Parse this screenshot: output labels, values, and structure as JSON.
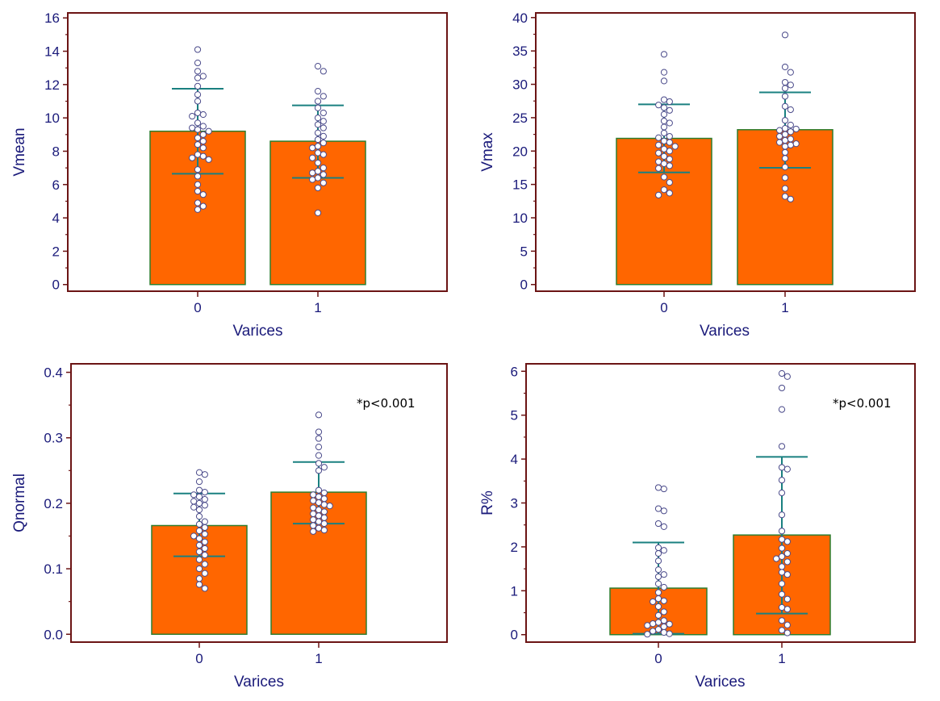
{
  "colors": {
    "frame": "#6b1414",
    "text": "#1a1a7a",
    "annotation": "#000000",
    "bar_fill": "#ff6600",
    "bar_edge": "#2e7d2e",
    "errorbar": "#1a8080",
    "point_edge": "#4a4a8a",
    "point_fill": "#ffffff"
  },
  "chart_data": [
    {
      "type": "bar",
      "ylabel": "Vmean",
      "xlabel": "Varices",
      "categories": [
        "0",
        "1"
      ],
      "values": [
        9.2,
        8.6
      ],
      "error_upper": [
        11.75,
        10.75
      ],
      "error_lower": [
        6.65,
        6.4
      ],
      "ylim": [
        -0.4,
        16.3
      ],
      "yticks": [
        0,
        2,
        4,
        6,
        8,
        10,
        12,
        14,
        16
      ],
      "ytick_labels": [
        "0",
        "2",
        "4",
        "6",
        "8",
        "10",
        "12",
        "14",
        "16"
      ],
      "annotation": "",
      "points": [
        [
          14.1,
          13.3,
          12.8,
          12.5,
          12.4,
          11.9,
          11.4,
          11.0,
          10.3,
          10.2,
          10.1,
          9.7,
          9.5,
          9.4,
          9.3,
          9.2,
          9.0,
          8.8,
          8.6,
          8.4,
          8.2,
          7.8,
          7.7,
          7.6,
          7.5,
          6.9,
          6.5,
          6.0,
          5.6,
          5.4,
          4.9,
          4.7,
          4.5
        ],
        [
          13.1,
          12.8,
          11.6,
          11.3,
          11.0,
          10.6,
          10.3,
          10.0,
          9.8,
          9.6,
          9.4,
          9.1,
          8.9,
          8.7,
          8.5,
          8.3,
          8.2,
          7.9,
          7.8,
          7.6,
          7.3,
          7.0,
          6.8,
          6.7,
          6.6,
          6.4,
          6.3,
          6.1,
          5.8,
          4.3
        ]
      ]
    },
    {
      "type": "bar",
      "ylabel": "Vmax",
      "xlabel": "Varices",
      "categories": [
        "0",
        "1"
      ],
      "values": [
        21.9,
        23.2
      ],
      "error_upper": [
        27.0,
        28.8
      ],
      "error_lower": [
        16.8,
        17.5
      ],
      "ylim": [
        -1,
        40.7
      ],
      "yticks": [
        0,
        5,
        10,
        15,
        20,
        25,
        30,
        35,
        40
      ],
      "ytick_labels": [
        "0",
        "5",
        "10",
        "15",
        "20",
        "25",
        "30",
        "35",
        "40"
      ],
      "annotation": "",
      "points": [
        [
          34.5,
          31.8,
          30.5,
          27.7,
          27.4,
          26.9,
          26.5,
          26.1,
          25.5,
          24.5,
          24.2,
          23.6,
          22.7,
          22.2,
          22.0,
          21.5,
          21.3,
          20.9,
          20.7,
          20.3,
          20.0,
          19.7,
          19.2,
          18.8,
          18.4,
          18.1,
          17.8,
          17.4,
          16.1,
          15.3,
          14.2,
          13.7,
          13.4
        ],
        [
          37.4,
          32.6,
          31.8,
          30.3,
          29.9,
          29.4,
          28.2,
          26.7,
          26.2,
          24.6,
          23.9,
          23.4,
          23.3,
          23.1,
          22.9,
          22.5,
          22.2,
          21.8,
          21.6,
          21.3,
          21.1,
          20.9,
          20.7,
          19.8,
          18.9,
          17.6,
          16.0,
          14.4,
          13.2,
          12.8
        ]
      ]
    },
    {
      "type": "bar",
      "ylabel": "Qnormal",
      "xlabel": "Varices",
      "categories": [
        "0",
        "1"
      ],
      "values": [
        0.166,
        0.217
      ],
      "error_upper": [
        0.215,
        0.263
      ],
      "error_lower": [
        0.119,
        0.169
      ],
      "ylim": [
        -0.012,
        0.413
      ],
      "yticks": [
        0,
        0.1,
        0.2,
        0.3,
        0.4
      ],
      "ytick_labels": [
        "0.0",
        "0.1",
        "0.2",
        "0.3",
        "0.4"
      ],
      "annotation": "*p<0.001",
      "points": [
        [
          0.247,
          0.244,
          0.233,
          0.22,
          0.217,
          0.213,
          0.21,
          0.206,
          0.203,
          0.2,
          0.197,
          0.194,
          0.19,
          0.18,
          0.172,
          0.168,
          0.163,
          0.158,
          0.153,
          0.15,
          0.146,
          0.141,
          0.136,
          0.131,
          0.126,
          0.121,
          0.114,
          0.107,
          0.1,
          0.093,
          0.085,
          0.076,
          0.07
        ],
        [
          0.335,
          0.309,
          0.299,
          0.286,
          0.273,
          0.261,
          0.255,
          0.25,
          0.22,
          0.216,
          0.213,
          0.21,
          0.207,
          0.204,
          0.201,
          0.198,
          0.196,
          0.193,
          0.19,
          0.187,
          0.184,
          0.181,
          0.178,
          0.175,
          0.172,
          0.169,
          0.166,
          0.162,
          0.159,
          0.157
        ]
      ]
    },
    {
      "type": "bar",
      "ylabel": "R%",
      "xlabel": "Varices",
      "categories": [
        "0",
        "1"
      ],
      "values": [
        1.06,
        2.27
      ],
      "error_upper": [
        2.1,
        4.05
      ],
      "error_lower": [
        0.02,
        0.48
      ],
      "ylim": [
        -0.17,
        6.17
      ],
      "yticks": [
        0,
        1,
        2,
        3,
        4,
        5,
        6
      ],
      "ytick_labels": [
        "0",
        "1",
        "2",
        "3",
        "4",
        "5",
        "6"
      ],
      "annotation": "*p<0.001",
      "points": [
        [
          3.35,
          3.32,
          2.87,
          2.82,
          2.53,
          2.46,
          1.98,
          1.92,
          1.85,
          1.68,
          1.48,
          1.37,
          1.32,
          1.16,
          1.08,
          0.96,
          0.82,
          0.77,
          0.75,
          0.64,
          0.52,
          0.44,
          0.32,
          0.28,
          0.25,
          0.24,
          0.21,
          0.18,
          0.12,
          0.08,
          0.05,
          0.02,
          0.01
        ],
        [
          5.95,
          5.88,
          5.62,
          5.13,
          4.29,
          3.81,
          3.77,
          3.52,
          3.23,
          2.73,
          2.36,
          2.17,
          2.12,
          1.97,
          1.85,
          1.78,
          1.73,
          1.66,
          1.55,
          1.42,
          1.37,
          1.16,
          0.92,
          0.81,
          0.62,
          0.58,
          0.32,
          0.22,
          0.1,
          0.04
        ]
      ]
    }
  ]
}
